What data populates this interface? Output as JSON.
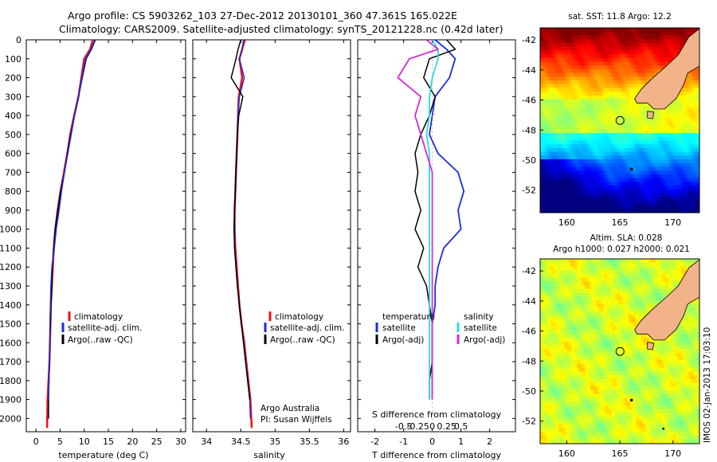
{
  "header": {
    "line1": "Argo profile: CS 5903262_103 27-Dec-2012 20130101_360 47.361S 165.022E",
    "line2": "Climatology: CARS2009. Satellite-adjusted climatology: synTS_20121228.nc (0.42d later)"
  },
  "depth_ticks": [
    "0",
    "100",
    "200",
    "300",
    "400",
    "500",
    "600",
    "700",
    "800",
    "900",
    "1000",
    "1100",
    "1200",
    "1300",
    "1400",
    "1500",
    "1600",
    "1700",
    "1800",
    "1900",
    "2000"
  ],
  "colors": {
    "climatology": "#e8141b",
    "satellite": "#1a2bdc",
    "argo": "#000000",
    "satellite_s": "#2ed8e0",
    "argo_s": "#d628d6",
    "land": "#f2b388"
  },
  "temp_panel": {
    "xlabel": "temperature (deg C)",
    "ticks": [
      "0",
      "5",
      "10",
      "15",
      "20",
      "25",
      "30"
    ],
    "legend": [
      "climatology",
      "satellite-adj. clim.",
      "Argo(..raw -QC)"
    ]
  },
  "sal_panel": {
    "xlabel": "salinity",
    "ticks": [
      "34",
      "34.5",
      "35",
      "35.5",
      "36"
    ],
    "legend": [
      "climatology",
      "satellite-adj. clim.",
      "Argo(..raw -QC)"
    ],
    "note1": "Argo Australia",
    "note2": "PI: Susan Wijffels"
  },
  "diff_panel": {
    "xlabel": "T difference from climatology",
    "top_label": "S difference from climatology",
    "t_ticks": [
      "-2",
      "-1",
      "0",
      "1",
      "2"
    ],
    "s_ticks": [
      "-0.5",
      "-0.25",
      "0",
      "0.25",
      "0.5"
    ],
    "legend_t_title": "temperature",
    "legend_s_title": "salinity",
    "legend_t": [
      "satellite",
      "Argo(-adj)"
    ],
    "legend_s": [
      "satellite",
      "Argo(-adj)"
    ]
  },
  "sst_map": {
    "title": "sat. SST: 11.8 Argo: 12.2",
    "lat_ticks": [
      "-42",
      "-44",
      "-46",
      "-48",
      "-50",
      "-52"
    ],
    "lon_ticks": [
      "160",
      "165",
      "170"
    ]
  },
  "sla_map": {
    "title1": "Altim. SLA: 0.028",
    "title2": "Argo h1000: 0.027 h2000: 0.021",
    "lat_ticks": [
      "-42",
      "-44",
      "-46",
      "-48",
      "-50",
      "-52"
    ],
    "lon_ticks": [
      "160",
      "165",
      "170"
    ]
  },
  "side_label": "IMOS 02-Jan-2013 17:03:10",
  "chart_data": [
    {
      "type": "line",
      "title": "",
      "xlabel": "temperature (deg C)",
      "ylabel": "",
      "xlim": [
        -2,
        31
      ],
      "ylim": [
        2070,
        0
      ],
      "series": [
        {
          "name": "climatology",
          "x": [
            11.8,
            11.2,
            10.0,
            9.4,
            8.8,
            7.9,
            7.1,
            6.5,
            5.8,
            5.1,
            4.5,
            4.0,
            3.7,
            3.5,
            3.3,
            3.1,
            3.0,
            2.9,
            2.8,
            2.6,
            2.4,
            2.3
          ],
          "y": [
            0,
            50,
            100,
            200,
            300,
            400,
            500,
            600,
            700,
            800,
            900,
            1000,
            1100,
            1200,
            1300,
            1400,
            1500,
            1600,
            1700,
            1800,
            1900,
            2050
          ]
        },
        {
          "name": "satellite-adj. clim.",
          "x": [
            12.3,
            11.5,
            10.4,
            9.6,
            8.8,
            8.0,
            7.2,
            6.5,
            5.9,
            5.1,
            4.5,
            4.0,
            3.7,
            3.4,
            3.3,
            3.1,
            3.0,
            2.9,
            2.8,
            2.7,
            2.6,
            2.6
          ],
          "y": [
            0,
            50,
            100,
            200,
            300,
            400,
            500,
            600,
            700,
            800,
            900,
            1000,
            1100,
            1200,
            1300,
            1400,
            1500,
            1600,
            1700,
            1800,
            1900,
            2000
          ]
        },
        {
          "name": "Argo(..raw -QC)",
          "x": [
            12.2,
            11.4,
            10.3,
            9.5,
            8.8,
            8.0,
            7.3,
            6.6,
            5.9,
            5.3,
            4.8,
            4.2,
            3.8,
            3.3,
            3.1,
            3.0,
            2.9,
            2.9,
            2.8,
            2.7,
            2.6
          ],
          "y": [
            0,
            50,
            100,
            200,
            300,
            400,
            500,
            600,
            700,
            800,
            900,
            1000,
            1100,
            1200,
            1300,
            1400,
            1500,
            1600,
            1700,
            1800,
            1900
          ]
        }
      ]
    },
    {
      "type": "line",
      "title": "",
      "xlabel": "salinity",
      "ylabel": "",
      "xlim": [
        33.8,
        36.1
      ],
      "ylim": [
        2070,
        0
      ],
      "series": [
        {
          "name": "climatology",
          "x": [
            34.56,
            34.52,
            34.48,
            34.52,
            34.47,
            34.46,
            34.45,
            34.44,
            34.43,
            34.42,
            34.41,
            34.41,
            34.42,
            34.44,
            34.46,
            34.48,
            34.51,
            34.55,
            34.58,
            34.61,
            34.64,
            34.66
          ],
          "y": [
            0,
            50,
            100,
            200,
            300,
            400,
            500,
            600,
            700,
            800,
            900,
            1000,
            1100,
            1200,
            1300,
            1400,
            1500,
            1600,
            1700,
            1800,
            1900,
            2050
          ]
        },
        {
          "name": "satellite-adj. clim.",
          "x": [
            34.54,
            34.52,
            34.48,
            34.55,
            34.48,
            34.46,
            34.45,
            34.44,
            34.43,
            34.42,
            34.41,
            34.41,
            34.41,
            34.43,
            34.45,
            34.48,
            34.51,
            34.54,
            34.57,
            34.6,
            34.63,
            34.64
          ],
          "y": [
            0,
            50,
            100,
            200,
            300,
            400,
            500,
            600,
            700,
            800,
            900,
            1000,
            1100,
            1200,
            1300,
            1400,
            1500,
            1600,
            1700,
            1800,
            1900,
            2000
          ]
        },
        {
          "name": "Argo(..raw -QC)",
          "x": [
            34.5,
            34.46,
            34.43,
            34.36,
            34.53,
            34.47,
            34.45,
            34.44,
            34.43,
            34.42,
            34.41,
            34.4,
            34.41,
            34.43,
            34.45,
            34.48,
            34.51,
            34.54,
            34.57,
            34.6,
            34.63
          ],
          "y": [
            0,
            50,
            100,
            200,
            300,
            400,
            500,
            600,
            700,
            800,
            900,
            1000,
            1100,
            1200,
            1300,
            1400,
            1500,
            1600,
            1700,
            1800,
            1900
          ]
        }
      ]
    },
    {
      "type": "line",
      "title": "",
      "xlabel": "T difference from climatology",
      "ylabel": "",
      "xlim": [
        -2.6,
        2.9
      ],
      "ylim": [
        2070,
        0
      ],
      "series": [
        {
          "name": "temperature satellite",
          "x": [
            0.1,
            0.5,
            0.8,
            0.6,
            0.1,
            0.0,
            -0.1,
            0.2,
            0.9,
            1.1,
            0.9,
            1.0,
            0.4,
            0.2,
            0.1,
            0.1,
            0.0,
            0.0,
            0.0,
            0.0,
            0.0
          ],
          "y": [
            0,
            50,
            100,
            200,
            300,
            400,
            500,
            600,
            700,
            800,
            900,
            1000,
            1100,
            1200,
            1300,
            1400,
            1500,
            1600,
            1700,
            1800,
            1900
          ]
        },
        {
          "name": "temperature Argo(-adj)",
          "x": [
            0.5,
            0.8,
            -0.1,
            -0.3,
            0.1,
            -0.1,
            -0.4,
            -0.6,
            -0.5,
            -0.6,
            -0.4,
            -0.6,
            -0.3,
            -0.5,
            -0.2,
            -0.1,
            0.0,
            0.0,
            0.0,
            -0.1,
            -0.1
          ],
          "y": [
            0,
            50,
            100,
            200,
            300,
            400,
            500,
            600,
            700,
            800,
            900,
            1000,
            1100,
            1200,
            1300,
            1400,
            1500,
            1600,
            1700,
            1800,
            1900
          ]
        },
        {
          "name": "salinity satellite",
          "x": [
            0.0,
            0.1,
            0.1,
            0.0,
            -0.05,
            -0.05,
            -0.1,
            -0.05,
            -0.05,
            -0.05,
            -0.05,
            -0.05,
            -0.05,
            -0.05,
            -0.05,
            -0.05,
            -0.05,
            -0.05,
            -0.05,
            -0.05,
            -0.05
          ],
          "y": [
            0,
            50,
            100,
            200,
            300,
            400,
            500,
            600,
            700,
            800,
            900,
            1000,
            1100,
            1200,
            1300,
            1400,
            1500,
            1600,
            1700,
            1800,
            1900
          ]
        },
        {
          "name": "salinity Argo(-adj)",
          "x": [
            -0.1,
            0.1,
            -0.4,
            -0.6,
            -0.2,
            -0.3,
            -0.2,
            -0.1,
            0.0,
            0.0,
            0.0,
            0.0,
            0.0,
            0.0,
            0.0,
            0.0,
            0.0,
            0.0,
            0.0,
            0.0,
            0.0
          ],
          "y": [
            0,
            50,
            100,
            200,
            300,
            400,
            500,
            600,
            700,
            800,
            900,
            1000,
            1100,
            1200,
            1300,
            1400,
            1500,
            1600,
            1700,
            1800,
            1900
          ]
        }
      ]
    },
    {
      "type": "heatmap",
      "title": "sat. SST: 11.8 Argo: 12.2",
      "xlim": [
        157.5,
        172.5
      ],
      "ylim": [
        -53.5,
        -41.2
      ],
      "argo_position": [
        165.022,
        -47.361
      ]
    },
    {
      "type": "heatmap",
      "title": "Altim. SLA: 0.028",
      "xlim": [
        157.5,
        172.5
      ],
      "ylim": [
        -53.5,
        -41.2
      ],
      "argo_position": [
        165.022,
        -47.361
      ]
    }
  ]
}
